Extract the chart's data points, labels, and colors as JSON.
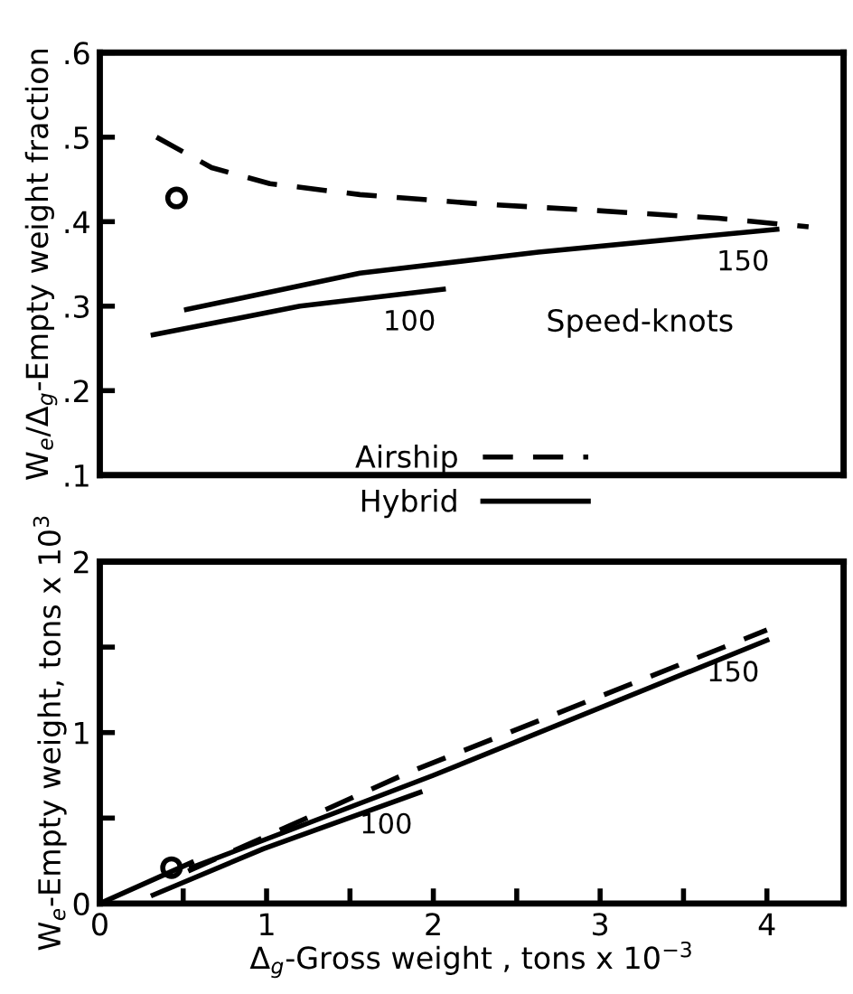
{
  "chart_data": [
    {
      "type": "line",
      "ylabel": "W$_{e}$/Δ$_{g}$-Empty weight fraction",
      "xlim": [
        0,
        4.46
      ],
      "ylim": [
        0.1,
        0.6
      ],
      "tick_labels": "y",
      "legend": "bottom",
      "yticks": [
        {
          "value": 0.1,
          "label": ".1"
        },
        {
          "value": 0.2,
          "label": ".2"
        },
        {
          "value": 0.3,
          "label": ".3"
        },
        {
          "value": 0.4,
          "label": ".4"
        },
        {
          "value": 0.5,
          "label": ".5"
        },
        {
          "value": 0.6,
          "label": ".6"
        }
      ],
      "series": [
        {
          "name": "Airship",
          "color": "#000000",
          "line_style": "dashed",
          "x": [
            0.34,
            0.67,
            1.02,
            1.56,
            2.28,
            2.99,
            3.71,
            4.25
          ],
          "values": [
            0.5,
            0.464,
            0.445,
            0.432,
            0.421,
            0.413,
            0.404,
            0.394
          ]
        },
        {
          "name": "Hybrid",
          "color": "#000000",
          "line_style": "solid",
          "x": [
            0.52,
            1.56,
            2.63,
            4.06
          ],
          "values": [
            0.296,
            0.339,
            0.364,
            0.391
          ]
        },
        {
          "color": "#000000",
          "line_style": "solid",
          "x": [
            0.32,
            1.2,
            2.06
          ],
          "values": [
            0.266,
            0.3,
            0.32
          ]
        },
        {
          "type": "scatter",
          "color": "#000000",
          "marker": "circle",
          "x": [
            0.46
          ],
          "values": [
            0.428
          ]
        }
      ],
      "annotations": [
        {
          "text": "100",
          "x": 2.06,
          "y": 0.32
        },
        {
          "text": "150",
          "x": 4.06,
          "y": 0.391
        },
        "Speed-knots"
      ]
    },
    {
      "type": "line",
      "xlabel": "Δ$_{g}$-Gross weight , tons x 10$^{−3}$",
      "ylabel": "W$_{e}$-Empty weight, tons x 10$^{3}$",
      "xlim": [
        0,
        4.46
      ],
      "ylim": [
        0,
        2
      ],
      "xticks": [
        0,
        {
          "value": 0.5,
          "label": null
        },
        1,
        {
          "value": 1.5,
          "label": null
        },
        2,
        {
          "value": 2.5,
          "label": null
        },
        3,
        {
          "value": 3.5,
          "label": null
        },
        4
      ],
      "yticks": [
        0,
        {
          "value": 0.5,
          "label": null
        },
        1,
        {
          "value": 1.5,
          "label": null
        },
        2
      ],
      "series": [
        {
          "color": "#000000",
          "line_style": "dashed",
          "x": [
            0.53,
            1.86,
            4.0
          ],
          "values": [
            0.19,
            0.77,
            1.6
          ]
        },
        {
          "color": "#000000",
          "line_style": "solid",
          "x": [
            0.55,
            2.0,
            4.0
          ],
          "values": [
            0.21,
            0.75,
            1.54
          ]
        },
        {
          "color": "#000000",
          "line_style": "solid",
          "x": [
            0.32,
            0.98,
            1.92
          ],
          "values": [
            0.05,
            0.32,
            0.65
          ]
        },
        {
          "color": "#000000",
          "line_style": "solid",
          "x": [
            0,
            0.55
          ],
          "values": [
            0,
            0.24
          ]
        },
        {
          "type": "scatter",
          "color": "#000000",
          "marker": "circle",
          "x": [
            0.43
          ],
          "values": [
            0.21
          ]
        }
      ],
      "annotations": [
        {
          "text": "100",
          "x": 1.92,
          "y": 0.65
        },
        {
          "text": "150",
          "x": 4.0,
          "y": 1.54
        }
      ]
    }
  ]
}
